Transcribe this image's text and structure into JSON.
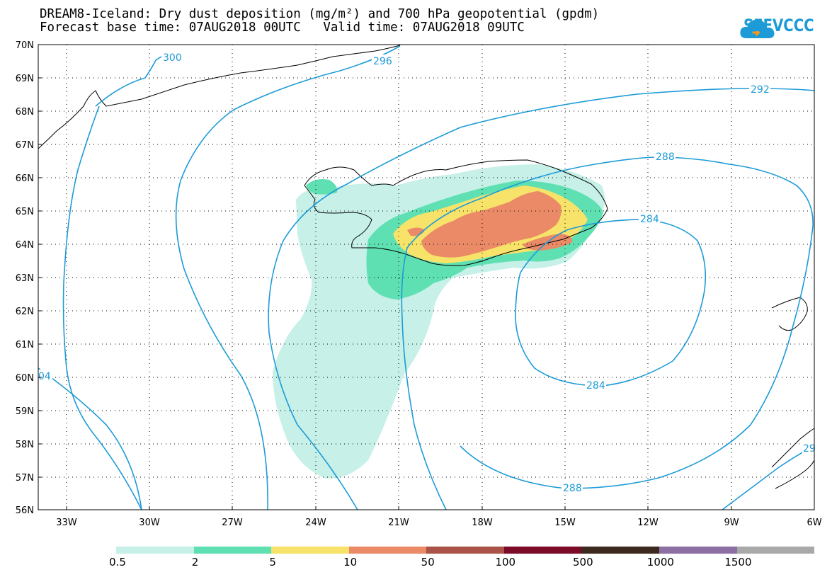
{
  "title": {
    "line1": "DREAM8-Iceland: Dry dust deposition (mg/m²) and 700 hPa geopotential (gpdm)",
    "line2": "Forecast base time: 07AUG2018 00UTC   Valid time: 07AUG2018 09UTC"
  },
  "logo": {
    "text": "SEEVCCC",
    "icon": "cloud-logo-icon",
    "color": "#1d9bd7"
  },
  "axes": {
    "lat_labels": [
      "70N",
      "69N",
      "68N",
      "67N",
      "66N",
      "65N",
      "64N",
      "63N",
      "62N",
      "61N",
      "60N",
      "59N",
      "58N",
      "57N",
      "56N"
    ],
    "lon_labels": [
      "33W",
      "30W",
      "27W",
      "24W",
      "21W",
      "18W",
      "15W",
      "12W",
      "9W",
      "6W"
    ],
    "lat_range": [
      56,
      70
    ],
    "lon_range": [
      -34.2,
      -6
    ],
    "grid": "dotted"
  },
  "contours": {
    "color": "#1d9bd7",
    "labels": [
      "300",
      "296",
      "292",
      "288",
      "284",
      "284",
      "288",
      "04",
      "29"
    ]
  },
  "legend": {
    "colors": [
      "#c6f0e8",
      "#5fe0b2",
      "#f7e36a",
      "#eb8a66",
      "#aa5348",
      "#7c0b2a",
      "#3b2a1d",
      "#8c6fa3",
      "#a9a9a9"
    ],
    "labels": [
      "0.5",
      "2",
      "5",
      "10",
      "50",
      "100",
      "500",
      "1000",
      "1500"
    ]
  }
}
